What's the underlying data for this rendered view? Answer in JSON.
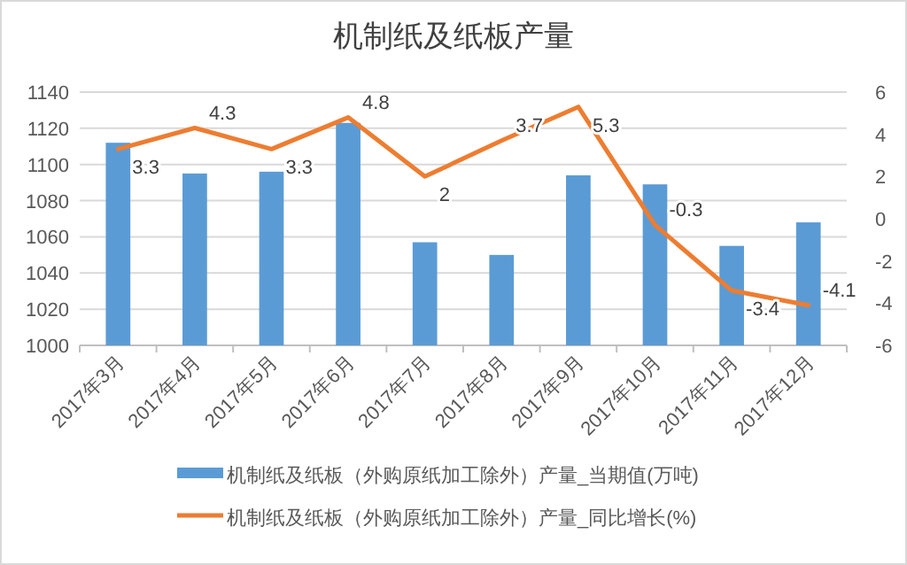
{
  "chart_data": {
    "type": "bar",
    "title": "机制纸及纸板产量",
    "categories": [
      "2017年3月",
      "2017年4月",
      "2017年5月",
      "2017年6月",
      "2017年7月",
      "2017年8月",
      "2017年9月",
      "2017年10月",
      "2017年11月",
      "2017年12月"
    ],
    "series": [
      {
        "name": "机制纸及纸板（外购原纸加工除外）产量_当期值(万吨)",
        "color": "#5b9bd5",
        "values": [
          1112,
          1095,
          1096,
          1123,
          1057,
          1050,
          1094,
          1089,
          1055,
          1068
        ]
      },
      {
        "name": "机制纸及纸板（外购原纸加工除外）产量_同比增长(%)",
        "color": "#ed7d31",
        "type": "line",
        "axis": "y2",
        "values": [
          3.3,
          4.3,
          3.3,
          4.8,
          2,
          3.7,
          5.3,
          -0.3,
          -3.4,
          -4.1
        ],
        "value_labels": [
          "3.3",
          "4.3",
          "3.3",
          "4.8",
          "2",
          "3.7",
          "5.3",
          "-0.3",
          "-3.4",
          "-4.1"
        ]
      }
    ],
    "ylim": [
      1000,
      1140
    ],
    "yticks": [
      1000,
      1020,
      1040,
      1060,
      1080,
      1100,
      1120,
      1140
    ],
    "y2lim": [
      -6,
      6
    ],
    "y2ticks": [
      -6,
      -4,
      -2,
      0,
      2,
      4,
      6
    ],
    "grid": "y",
    "legend": "bottom"
  }
}
